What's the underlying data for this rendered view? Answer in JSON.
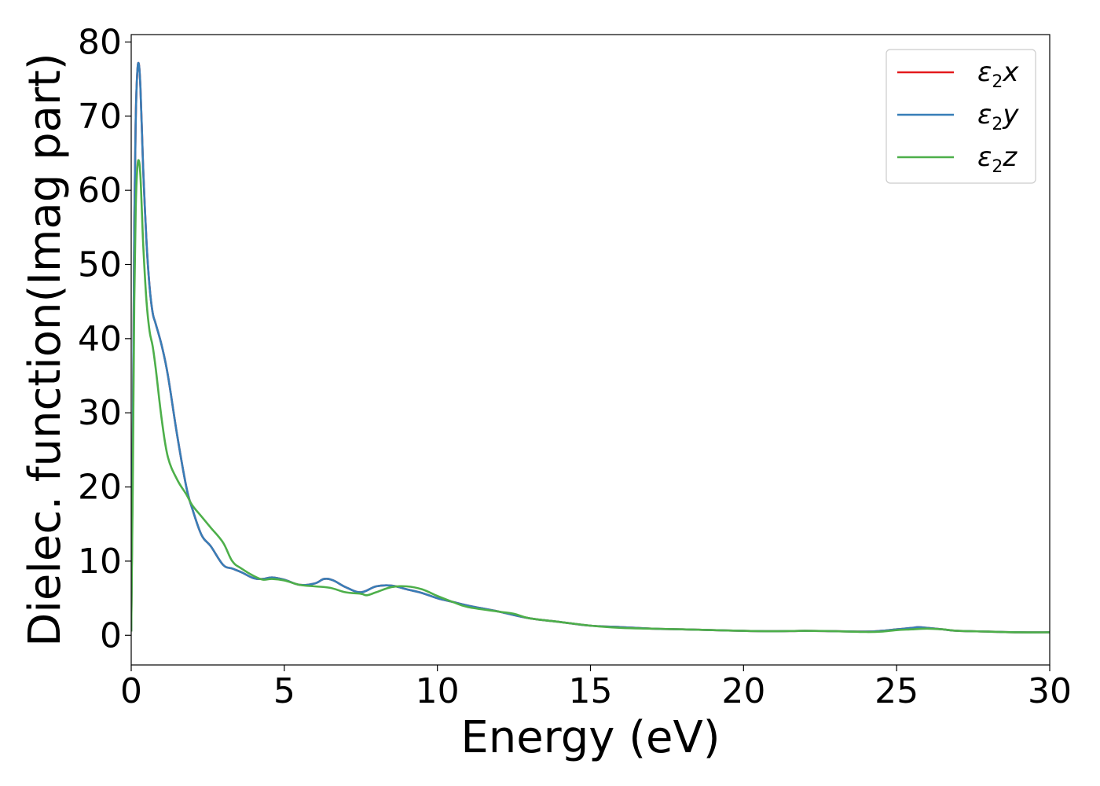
{
  "chart_data": {
    "type": "line",
    "xlabel": "Energy (eV)",
    "ylabel": "Dielec. function(Imag part)",
    "xlim": [
      0,
      30
    ],
    "ylim": [
      -4,
      81
    ],
    "xticks": [
      0,
      5,
      10,
      15,
      20,
      25,
      30
    ],
    "yticks": [
      0,
      10,
      20,
      30,
      40,
      50,
      60,
      70,
      80
    ],
    "grid": false,
    "legend_position": "top-right",
    "series": [
      {
        "name": "ε2x",
        "legend": {
          "base": "ε",
          "sub": "2",
          "suffix": "x"
        },
        "color": "#e41a1c",
        "x": [
          0,
          0.05,
          0.1,
          0.15,
          0.2,
          0.25,
          0.3,
          0.35,
          0.4,
          0.5,
          0.6,
          0.7,
          0.8,
          1.0,
          1.2,
          1.5,
          1.8,
          2.0,
          2.3,
          2.6,
          3.0,
          3.3,
          3.6,
          4.0,
          4.3,
          4.6,
          5.0,
          5.5,
          6.0,
          6.3,
          6.6,
          7.0,
          7.5,
          8.0,
          8.5,
          9.0,
          9.5,
          10.0,
          10.5,
          11.0,
          12.0,
          13.0,
          14.0,
          15.0,
          16.0,
          17.0,
          18.0,
          19.0,
          20.0,
          21.0,
          22.0,
          23.0,
          24.0,
          24.5,
          25.0,
          25.5,
          25.7,
          26.0,
          26.5,
          27.0,
          28.0,
          29.0,
          30.0
        ],
        "y": [
          0.5,
          25,
          55,
          70,
          76,
          77,
          74,
          68,
          62,
          53,
          47,
          43.5,
          42,
          39,
          35,
          27,
          20,
          17,
          13.5,
          12,
          9.5,
          9,
          8.5,
          7.7,
          7.6,
          7.8,
          7.5,
          6.8,
          7.0,
          7.6,
          7.4,
          6.5,
          5.8,
          6.6,
          6.7,
          6.2,
          5.7,
          5.0,
          4.5,
          4.0,
          3.2,
          2.3,
          1.8,
          1.3,
          1.1,
          0.9,
          0.8,
          0.7,
          0.6,
          0.55,
          0.6,
          0.55,
          0.5,
          0.6,
          0.8,
          1.0,
          1.1,
          1.0,
          0.8,
          0.6,
          0.5,
          0.4,
          0.4
        ]
      },
      {
        "name": "ε2y",
        "legend": {
          "base": "ε",
          "sub": "2",
          "suffix": "y"
        },
        "color": "#377eb8",
        "x": [
          0,
          0.05,
          0.1,
          0.15,
          0.2,
          0.25,
          0.3,
          0.35,
          0.4,
          0.5,
          0.6,
          0.7,
          0.8,
          1.0,
          1.2,
          1.5,
          1.8,
          2.0,
          2.3,
          2.6,
          3.0,
          3.3,
          3.6,
          4.0,
          4.3,
          4.6,
          5.0,
          5.5,
          6.0,
          6.3,
          6.6,
          7.0,
          7.5,
          8.0,
          8.5,
          9.0,
          9.5,
          10.0,
          10.5,
          11.0,
          12.0,
          13.0,
          14.0,
          15.0,
          16.0,
          17.0,
          18.0,
          19.0,
          20.0,
          21.0,
          22.0,
          23.0,
          24.0,
          24.5,
          25.0,
          25.5,
          25.7,
          26.0,
          26.5,
          27.0,
          28.0,
          29.0,
          30.0
        ],
        "y": [
          0.5,
          25,
          55,
          70,
          76,
          77,
          74,
          68,
          62,
          53,
          47,
          43.5,
          42,
          39,
          35,
          27,
          20,
          17,
          13.5,
          12,
          9.5,
          9,
          8.5,
          7.7,
          7.6,
          7.8,
          7.5,
          6.8,
          7.0,
          7.6,
          7.4,
          6.5,
          5.8,
          6.6,
          6.7,
          6.2,
          5.7,
          5.0,
          4.5,
          4.0,
          3.2,
          2.3,
          1.8,
          1.3,
          1.1,
          0.9,
          0.8,
          0.7,
          0.6,
          0.55,
          0.6,
          0.55,
          0.5,
          0.6,
          0.8,
          1.0,
          1.1,
          1.0,
          0.8,
          0.6,
          0.5,
          0.4,
          0.4
        ]
      },
      {
        "name": "ε2z",
        "legend": {
          "base": "ε",
          "sub": "2",
          "suffix": "z"
        },
        "color": "#4daf4a",
        "x": [
          0,
          0.05,
          0.1,
          0.15,
          0.2,
          0.25,
          0.3,
          0.35,
          0.4,
          0.5,
          0.6,
          0.7,
          0.8,
          1.0,
          1.2,
          1.5,
          1.8,
          2.0,
          2.3,
          2.6,
          3.0,
          3.3,
          3.6,
          4.0,
          4.3,
          4.6,
          5.0,
          5.5,
          6.0,
          6.5,
          7.0,
          7.5,
          7.7,
          8.0,
          8.5,
          9.0,
          9.5,
          10.0,
          10.5,
          11.0,
          12.0,
          12.5,
          13.0,
          14.0,
          15.0,
          16.0,
          17.0,
          18.0,
          19.0,
          20.0,
          21.0,
          22.0,
          23.0,
          24.0,
          24.5,
          25.0,
          25.5,
          26.0,
          26.5,
          27.0,
          28.0,
          29.0,
          30.0
        ],
        "y": [
          0.5,
          20,
          45,
          58,
          63,
          64,
          62,
          57,
          52,
          45,
          41,
          39,
          36,
          29,
          24,
          21,
          19,
          17.5,
          16,
          14.5,
          12.5,
          10,
          9,
          8,
          7.5,
          7.6,
          7.4,
          6.8,
          6.6,
          6.4,
          5.8,
          5.6,
          5.4,
          5.8,
          6.5,
          6.6,
          6.2,
          5.3,
          4.5,
          3.8,
          3.2,
          2.9,
          2.3,
          1.8,
          1.3,
          1.0,
          0.9,
          0.8,
          0.7,
          0.6,
          0.55,
          0.6,
          0.55,
          0.45,
          0.5,
          0.7,
          0.8,
          0.9,
          0.8,
          0.6,
          0.5,
          0.4,
          0.4
        ]
      }
    ]
  }
}
